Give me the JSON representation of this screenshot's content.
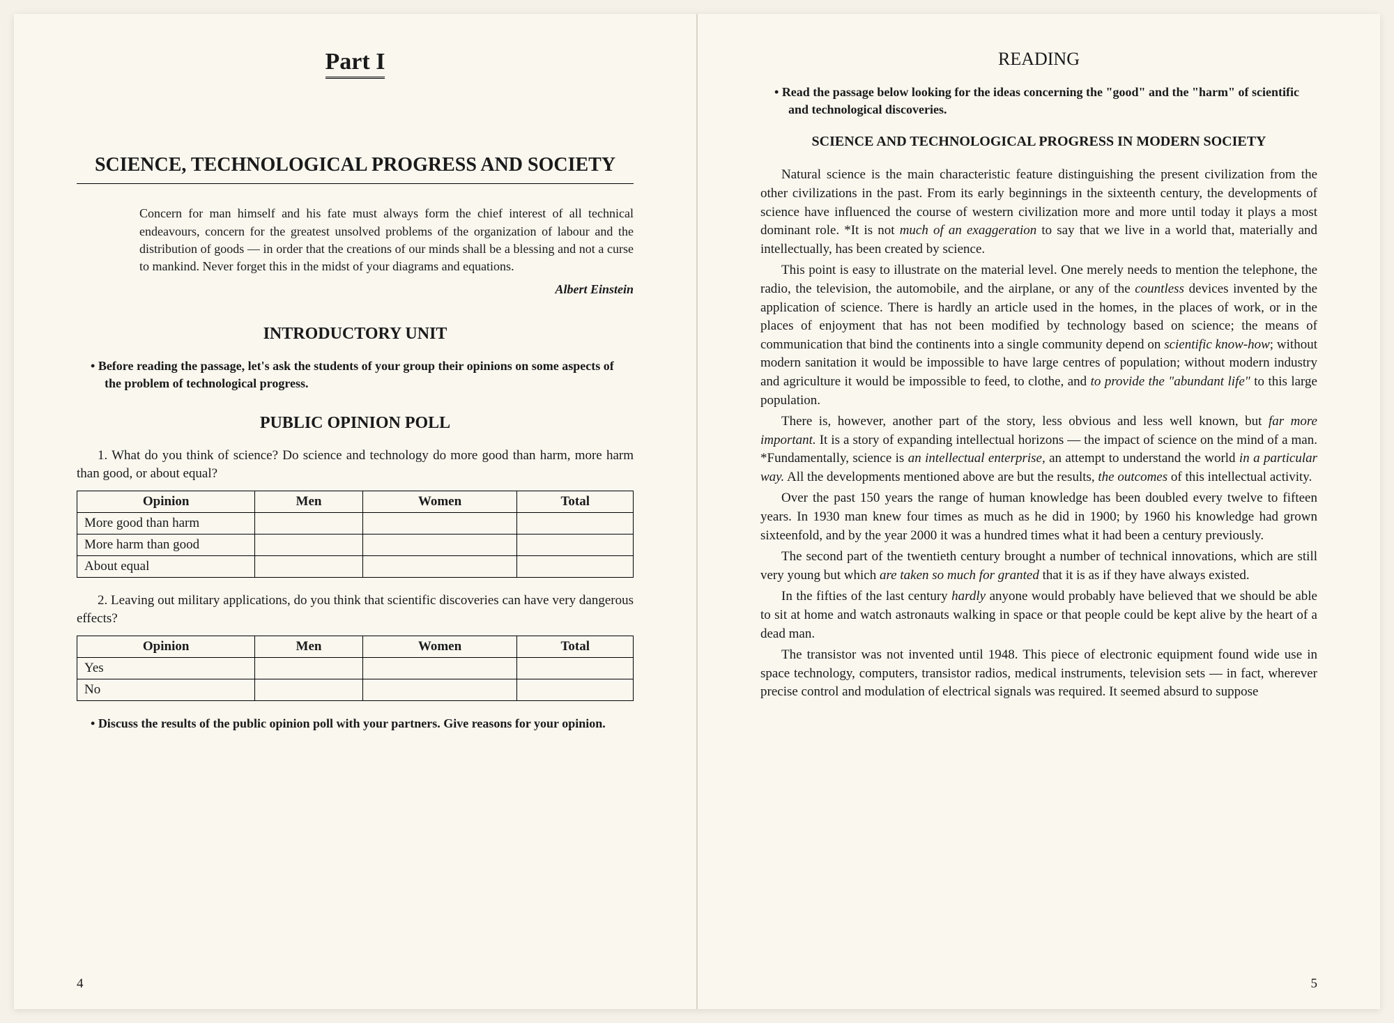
{
  "left": {
    "partTitle": "Part I",
    "mainTitle": "SCIENCE, TECHNOLOGICAL PROGRESS AND SOCIETY",
    "quote": "Concern for man himself and his fate must always form the chief interest of all technical endeavours, concern for the greatest unsolved problems of the organization of labour and the distribution of goods — in order that the creations of our minds shall be a blessing and not a curse to mankind. Never forget this in the midst of your diagrams and equations.",
    "quoteAuthor": "Albert Einstein",
    "introTitle": "INTRODUCTORY UNIT",
    "instruction1": "Before reading the passage, let's ask the students of your group their opinions on some aspects of the problem of technological progress.",
    "pollTitle": "PUBLIC OPINION POLL",
    "q1": "1. What do you think of science? Do science and technology do more good than harm, more harm than good, or about equal?",
    "table1": {
      "headers": [
        "Opinion",
        "Men",
        "Women",
        "Total"
      ],
      "rows": [
        "More good than harm",
        "More harm than good",
        "About equal"
      ]
    },
    "q2": "2. Leaving out military applications, do you think that scientific discoveries can have very dangerous effects?",
    "table2": {
      "headers": [
        "Opinion",
        "Men",
        "Women",
        "Total"
      ],
      "rows": [
        "Yes",
        "No"
      ]
    },
    "instruction2": "Discuss the results of the public opinion poll with your partners. Give reasons for your opinion.",
    "pageNum": "4"
  },
  "right": {
    "readingTitle": "READING",
    "instruction": "Read the passage below looking for the ideas concerning the \"good\" and the \"harm\" of scientific and technological discoveries.",
    "articleTitle": "SCIENCE AND TECHNOLOGICAL PROGRESS IN MODERN SOCIETY",
    "p1a": "Natural science is the main characteristic feature distinguishing the present civilization from the other civilizations in the past. From its early beginnings in the sixteenth century, the developments of science have influenced the course of western civilization more and more until today it plays a most dominant role. *It is not ",
    "p1i1": "much of an exaggeration",
    "p1b": " to say that we live in a world that, materially and intellectually, has been created by science.",
    "p2a": "This point is easy to illustrate on the material level. One merely needs to mention the telephone, the radio, the television, the automobile, and the airplane, or any of the ",
    "p2i1": "countless",
    "p2b": " devices invented by the application of science. There is hardly an article used in the homes, in the places of work, or in the places of enjoyment that has not been modified by technology based on science; the means of communication that bind the continents into a single community depend on ",
    "p2i2": "scientific know-how",
    "p2c": "; without modern sanitation it would be impossible to have large centres of population; without modern industry and agriculture it would be impossible to feed, to clothe, and ",
    "p2i3": "to provide the \"abundant life\"",
    "p2d": " to this large population.",
    "p3a": "There is, however, another part of the story, less obvious and less well known, but ",
    "p3i1": "far more important.",
    "p3b": " It is a story of expanding intellectual horizons — the impact of science on the mind of a man. *Fundamentally, science is ",
    "p3i2": "an intellectual enterprise,",
    "p3c": " an attempt to understand the world ",
    "p3i3": "in a particular way.",
    "p3d": " All the developments mentioned above are but the results, ",
    "p3i4": "the outcomes",
    "p3e": " of this intellectual activity.",
    "p4": "Over the past 150 years the range of human knowledge has been doubled every twelve to fifteen years. In 1930 man knew four times as much as he did in 1900; by 1960 his knowledge had grown sixteenfold, and by the year 2000 it was a hundred times what it had been a century previously.",
    "p5a": "The second part of the twentieth century brought a number of technical innovations, which are still very young but which ",
    "p5i1": "are taken so much for granted",
    "p5b": " that it is as if they have always existed.",
    "p6a": "In the fifties of the last century ",
    "p6i1": "hardly",
    "p6b": " anyone would probably have believed that we should be able to sit at home and watch astronauts walking in space or that people could be kept alive by the heart of a dead man.",
    "p7": "The transistor was not invented until 1948. This piece of electronic equipment found wide use in space technology, computers, transistor radios, medical instruments, television sets — in fact, wherever precise control and modulation of electrical signals was required. It seemed absurd to suppose",
    "pageNum": "5"
  }
}
